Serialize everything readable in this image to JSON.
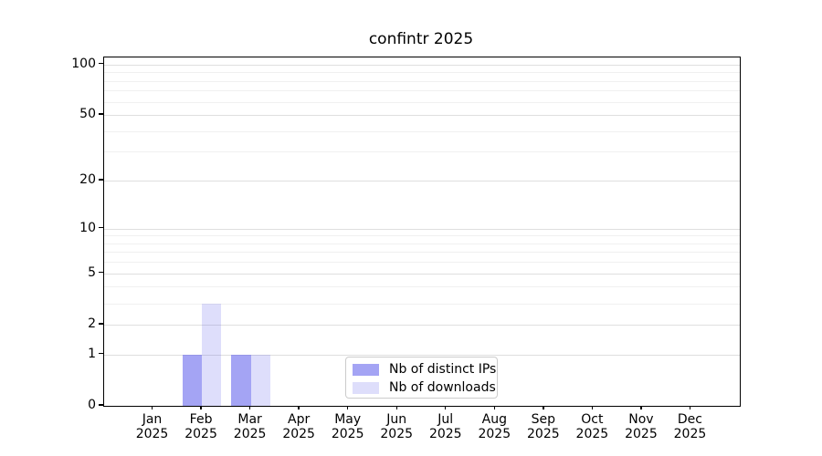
{
  "chart_data": {
    "type": "bar",
    "title": "confintr 2025",
    "categories": [
      "Jan 2025",
      "Feb 2025",
      "Mar 2025",
      "Apr 2025",
      "May 2025",
      "Jun 2025",
      "Jul 2025",
      "Aug 2025",
      "Sep 2025",
      "Oct 2025",
      "Nov 2025",
      "Dec 2025"
    ],
    "series": [
      {
        "name": "Nb of distinct IPs",
        "color": "#5a5aeb",
        "alpha": 0.55,
        "values": [
          0,
          1,
          1,
          0,
          0,
          0,
          0,
          0,
          0,
          0,
          0,
          0
        ]
      },
      {
        "name": "Nb of downloads",
        "color": "#5a5aeb",
        "alpha": 0.2,
        "values": [
          0,
          3,
          1,
          0,
          0,
          0,
          0,
          0,
          0,
          0,
          0,
          0
        ]
      }
    ],
    "xlabel": "",
    "ylabel": "",
    "y_axis": {
      "scale": "log1p",
      "min": 0,
      "max": 110,
      "major_ticks": [
        0,
        1,
        2,
        5,
        10,
        20,
        50,
        100
      ],
      "minor_gridlines": [
        3,
        4,
        6,
        7,
        8,
        9,
        30,
        40,
        60,
        70,
        80,
        90
      ]
    },
    "x_axis": {
      "tick_label_lines": 2
    },
    "legend": {
      "location": "lower center"
    },
    "grid": true
  }
}
